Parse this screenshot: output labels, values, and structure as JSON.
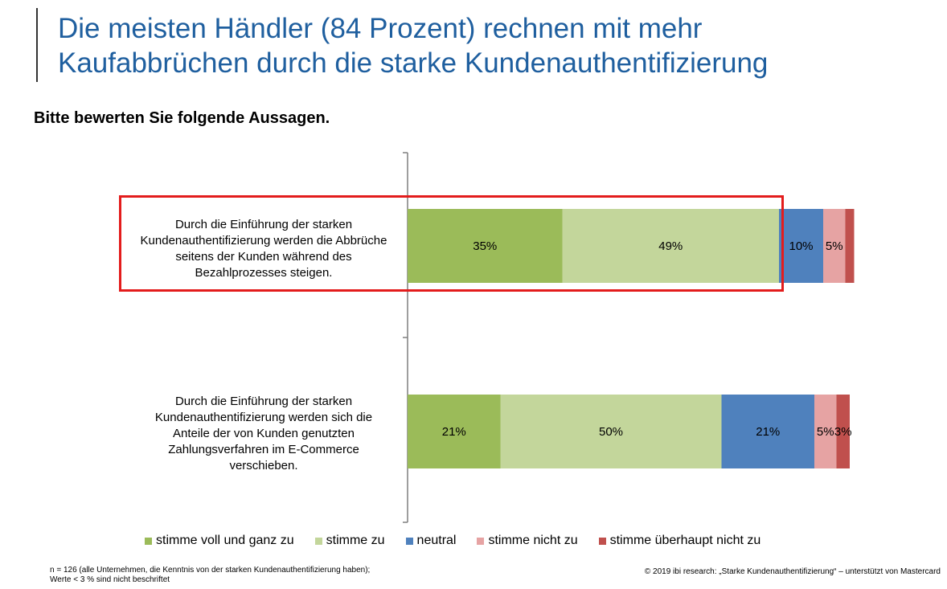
{
  "header": {
    "title_line1": "Die meisten Händler (84 Prozent) rechnen mit mehr",
    "title_line2": "Kaufabbrüchen durch die starke Kundenauthentifizierung",
    "subtitle": "Bitte bewerten Sie folgende Aussagen."
  },
  "chart_data": {
    "type": "bar",
    "orientation": "horizontal",
    "stacked": true,
    "categories": [
      "Durch die Einführung der starken Kundenauthentifizierung werden die Abbrüche seitens der Kunden während des Bezahlprozesses steigen.",
      "Durch die Einführung der starken Kundenauthentifizierung werden sich die Anteile der von Kunden genutzten Zahlungsverfahren im E-Commerce verschieben."
    ],
    "category_lines": [
      [
        "Durch die Einführung der starken",
        "Kundenauthentifizierung werden die Abbrüche",
        "seitens der Kunden während des",
        "Bezahlprozesses steigen."
      ],
      [
        "Durch die Einführung der starken",
        "Kundenauthentifizierung werden sich die",
        "Anteile der von Kunden genutzten",
        "Zahlungsverfahren im E-Commerce",
        "verschieben."
      ]
    ],
    "series": [
      {
        "name": "stimme voll und ganz zu",
        "values": [
          35,
          21
        ],
        "labels": [
          "35%",
          "21%"
        ],
        "color": "#9bbb59"
      },
      {
        "name": "stimme zu",
        "values": [
          49,
          50
        ],
        "labels": [
          "49%",
          "50%"
        ],
        "color": "#c3d69b"
      },
      {
        "name": "neutral",
        "values": [
          10,
          21
        ],
        "labels": [
          "10%",
          "21%"
        ],
        "color": "#4f81bd"
      },
      {
        "name": "stimme nicht zu",
        "values": [
          5,
          5
        ],
        "labels": [
          "5%",
          "5%"
        ],
        "color": "#e6a3a3"
      },
      {
        "name": "stimme überhaupt nicht zu",
        "values": [
          2,
          3
        ],
        "labels": [
          "",
          "3%"
        ],
        "color": "#c0504d"
      }
    ],
    "xlim": [
      0,
      100
    ],
    "legend_position": "bottom",
    "highlighted_category": 0,
    "highlight_color": "#e31c1c"
  },
  "footer": {
    "note_line1": "n = 126 (alle Unternehmen, die Kenntnis von der starken Kundenauthentifizierung haben);",
    "note_line2": "Werte < 3 % sind nicht beschriftet",
    "copyright": "© 2019 ibi research: „Starke Kundenauthentifizierung“ – unterstützt von Mastercard"
  }
}
